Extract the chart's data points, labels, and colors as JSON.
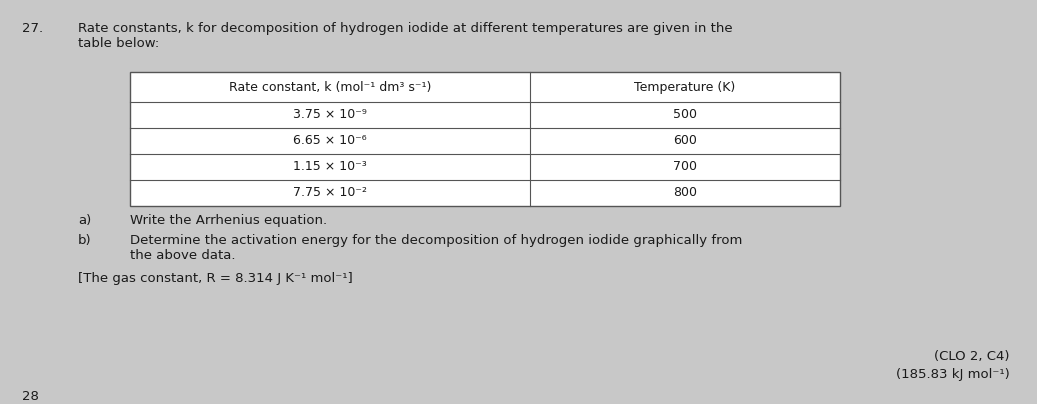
{
  "question_number": "27.",
  "intro_text": "Rate constants, k for decomposition of hydrogen iodide at different temperatures are given in the\ntable below:",
  "table_header_col1": "Rate constant, k (mol⁻¹ dm³ s⁻¹)",
  "table_header_col2": "Temperature (K)",
  "table_data": [
    [
      "3.75 × 10⁻⁹",
      "500"
    ],
    [
      "6.65 × 10⁻⁶",
      "600"
    ],
    [
      "1.15 × 10⁻³",
      "700"
    ],
    [
      "7.75 × 10⁻²",
      "800"
    ]
  ],
  "part_a_label": "a)",
  "part_a_text": "Write the Arrhenius equation.",
  "part_b_label": "b)",
  "part_b_text": "Determine the activation energy for the decomposition of hydrogen iodide graphically from\nthe above data.",
  "gas_constant": "[The gas constant, R = 8.314 J K⁻¹ mol⁻¹]",
  "answer_line1": "(CLO 2, C4)",
  "answer_line2": "(185.83 kJ mol⁻¹)",
  "bg_color": "#c8c8c8",
  "text_color": "#1a1a1a",
  "table_border_color": "#555555",
  "font_size_main": 9.5,
  "font_size_table": 9.0
}
